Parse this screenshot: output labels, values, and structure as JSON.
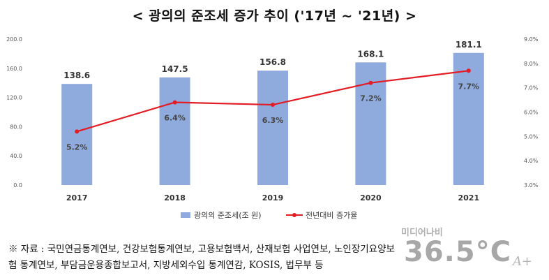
{
  "title": "< 광의의 준조세 증가 추이 ('17년 ~ '21년) >",
  "chart_data": {
    "type": "bar+line",
    "categories": [
      "2017",
      "2018",
      "2019",
      "2020",
      "2021"
    ],
    "series": [
      {
        "name": "광의의 준조세(조 원)",
        "type": "bar",
        "axis": "left",
        "values": [
          138.6,
          147.5,
          156.8,
          168.1,
          181.1
        ],
        "labels": [
          "138.6",
          "147.5",
          "156.8",
          "168.1",
          "181.1"
        ],
        "color": "#8faadc"
      },
      {
        "name": "전년대비 증가율",
        "type": "line",
        "axis": "right",
        "values": [
          5.2,
          6.4,
          6.3,
          7.2,
          7.7
        ],
        "labels": [
          "5.2%",
          "6.4%",
          "6.3%",
          "7.2%",
          "7.7%"
        ],
        "color": "#e31b23"
      }
    ],
    "left_axis": {
      "ylim": [
        0,
        200
      ],
      "ticks": [
        0,
        40,
        80,
        120,
        160,
        200
      ],
      "tick_labels": [
        "0.0",
        "40.0",
        "80.0",
        "120.0",
        "160.0",
        "200.0"
      ]
    },
    "right_axis": {
      "ylim": [
        3,
        9
      ],
      "ticks": [
        3,
        4,
        5,
        6,
        7,
        8,
        9
      ],
      "tick_labels": [
        "3.0%",
        "4.0%",
        "5.0%",
        "6.0%",
        "7.0%",
        "8.0%",
        "9.0%"
      ]
    },
    "grid": false,
    "legend_position": "bottom"
  },
  "source": {
    "line1": "※ 자료 : 국민연금통계연보, 건강보험통계연보, 고용보험백서, 산재보험 사업연보, 노인장기요양보",
    "line2": "험 통계연보, 부담금운용종합보고서, 지방세외수입 통계연감, KOSIS, 법무부 등"
  },
  "watermark": {
    "small": "미디어나비",
    "big": "36.5°C",
    "signature": "A+"
  }
}
